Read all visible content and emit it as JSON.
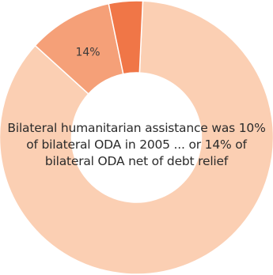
{
  "chart_data": {
    "type": "pie",
    "slices": [
      {
        "name": "",
        "value": 86,
        "color": "#fbcfb3",
        "label": ""
      },
      {
        "name": "",
        "value": 10,
        "color": "#f5a078",
        "label": "14%"
      },
      {
        "name": "",
        "value": 4,
        "color": "#f07647",
        "label": ""
      }
    ],
    "center_text": [
      "Bilateral humanitarian assistance was 10%",
      "of bilateral ODA in 2005 ... or 14% of",
      "bilateral ODA net of debt relief"
    ]
  }
}
